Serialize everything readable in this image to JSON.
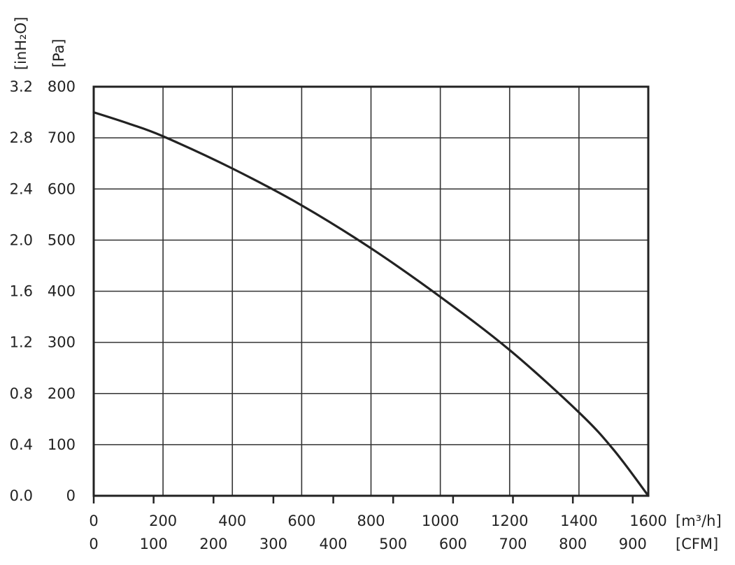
{
  "chart_data": {
    "type": "line",
    "title": "",
    "x_axis": {
      "primary_unit": "[m³/h]",
      "primary_ticks": [
        "0",
        "200",
        "400",
        "600",
        "800",
        "1000",
        "1200",
        "1400",
        "1600"
      ],
      "primary_range": [
        0,
        1600
      ],
      "secondary_unit": "[CFM]",
      "secondary_ticks": [
        "0",
        "100",
        "200",
        "300",
        "400",
        "500",
        "600",
        "700",
        "800",
        "900"
      ]
    },
    "y_axis": {
      "primary_unit": "[Pa]",
      "primary_ticks": [
        "0",
        "100",
        "200",
        "300",
        "400",
        "500",
        "600",
        "700",
        "800"
      ],
      "primary_range": [
        0,
        800
      ],
      "secondary_unit": "[inH₂O]",
      "secondary_ticks": [
        "0.0",
        "0.4",
        "0.8",
        "1.2",
        "1.6",
        "2.0",
        "2.4",
        "2.8",
        "3.2"
      ]
    },
    "grid": true,
    "series": [
      {
        "x": [
          0,
          100,
          200,
          400,
          600,
          800,
          1000,
          1200,
          1400,
          1500,
          1600
        ],
        "y": [
          750,
          728,
          703,
          640,
          568,
          484,
          389,
          285,
          163,
          90,
          0
        ]
      }
    ]
  }
}
